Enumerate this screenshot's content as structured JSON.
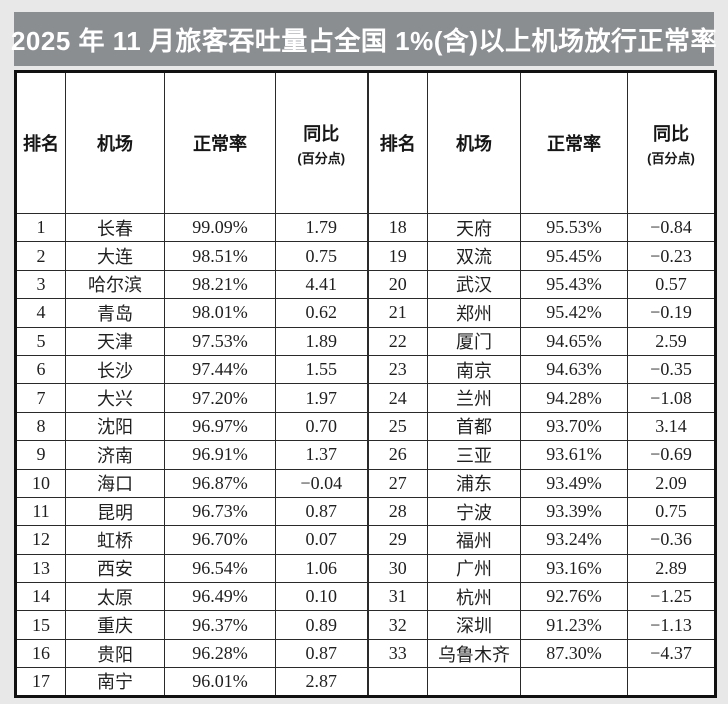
{
  "title": {
    "text": "2025 年 11 月旅客吞吐量占全国 1%(含)以上机场放行正常率"
  },
  "colors": {
    "page_bg": "#e8e8e8",
    "title_bg": "#8b8e91",
    "title_text": "#ffffff",
    "table_bg": "#ffffff",
    "border": "#2a2a2a",
    "text": "#1f1f1f"
  },
  "headers": {
    "rank": "排名",
    "airport": "机场",
    "rate": "正常率",
    "yoy": "同比",
    "yoy_note": "(百分点)"
  },
  "chart_data": {
    "type": "table",
    "title": "2025 年 11 月旅客吞吐量占全国 1%(含)以上机场放行正常率",
    "columns": [
      "排名",
      "机场",
      "正常率",
      "同比(百分点)"
    ],
    "layout": "two-column halves: ranks 1-17 left, 18-33 right, last right cell row empty",
    "rows": [
      [
        "1",
        "长春",
        "99.09%",
        "1.79"
      ],
      [
        "2",
        "大连",
        "98.51%",
        "0.75"
      ],
      [
        "3",
        "哈尔滨",
        "98.21%",
        "4.41"
      ],
      [
        "4",
        "青岛",
        "98.01%",
        "0.62"
      ],
      [
        "5",
        "天津",
        "97.53%",
        "1.89"
      ],
      [
        "6",
        "长沙",
        "97.44%",
        "1.55"
      ],
      [
        "7",
        "大兴",
        "97.20%",
        "1.97"
      ],
      [
        "8",
        "沈阳",
        "96.97%",
        "0.70"
      ],
      [
        "9",
        "济南",
        "96.91%",
        "1.37"
      ],
      [
        "10",
        "海口",
        "96.87%",
        "−0.04"
      ],
      [
        "11",
        "昆明",
        "96.73%",
        "0.87"
      ],
      [
        "12",
        "虹桥",
        "96.70%",
        "0.07"
      ],
      [
        "13",
        "西安",
        "96.54%",
        "1.06"
      ],
      [
        "14",
        "太原",
        "96.49%",
        "0.10"
      ],
      [
        "15",
        "重庆",
        "96.37%",
        "0.89"
      ],
      [
        "16",
        "贵阳",
        "96.28%",
        "0.87"
      ],
      [
        "17",
        "南宁",
        "96.01%",
        "2.87"
      ],
      [
        "18",
        "天府",
        "95.53%",
        "−0.84"
      ],
      [
        "19",
        "双流",
        "95.45%",
        "−0.23"
      ],
      [
        "20",
        "武汉",
        "95.43%",
        "0.57"
      ],
      [
        "21",
        "郑州",
        "95.42%",
        "−0.19"
      ],
      [
        "22",
        "厦门",
        "94.65%",
        "2.59"
      ],
      [
        "23",
        "南京",
        "94.63%",
        "−0.35"
      ],
      [
        "24",
        "兰州",
        "94.28%",
        "−1.08"
      ],
      [
        "25",
        "首都",
        "93.70%",
        "3.14"
      ],
      [
        "26",
        "三亚",
        "93.61%",
        "−0.69"
      ],
      [
        "27",
        "浦东",
        "93.49%",
        "2.09"
      ],
      [
        "28",
        "宁波",
        "93.39%",
        "0.75"
      ],
      [
        "29",
        "福州",
        "93.24%",
        "−0.36"
      ],
      [
        "30",
        "广州",
        "93.16%",
        "2.89"
      ],
      [
        "31",
        "杭州",
        "92.76%",
        "−1.25"
      ],
      [
        "32",
        "深圳",
        "91.23%",
        "−1.13"
      ],
      [
        "33",
        "乌鲁木齐",
        "87.30%",
        "−4.37"
      ]
    ]
  }
}
